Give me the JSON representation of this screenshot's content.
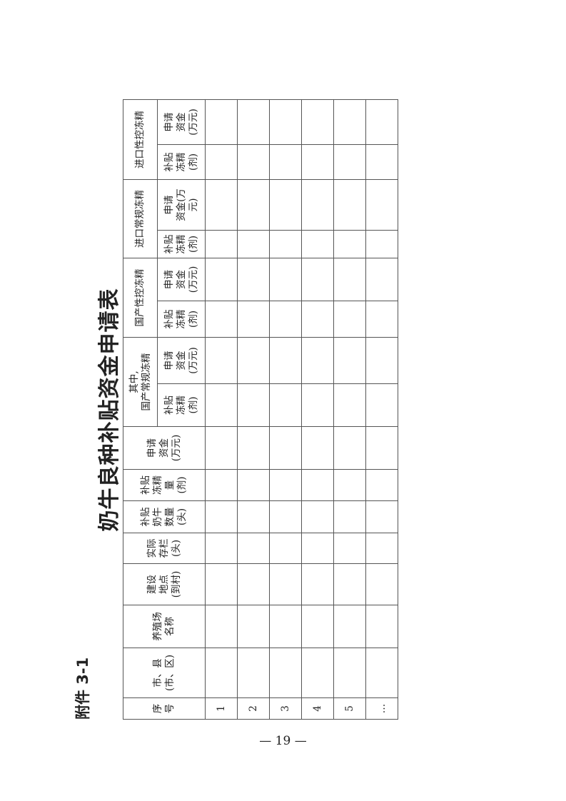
{
  "attachment_label": "附件 3-1",
  "title": "奶牛良种补贴资金申请表",
  "page_number": "— 19 —",
  "table": {
    "headers": {
      "seq": "序\n号",
      "region": "市、县\n(市、区)",
      "farm": "养殖场\n名称",
      "site": "建设\n地点\n(到村)",
      "stock": "实际\n存栏\n(头)",
      "cows": "补贴\n奶牛\n数量\n(头)",
      "semen": "补贴\n冻精\n量\n(剂)",
      "funds": "申请\n资金\n(万元)",
      "groups": [
        {
          "label": "其中,\n国产常规冻精",
          "sub": [
            "补贴\n冻精\n(剂)",
            "申请\n资金\n(万元)"
          ]
        },
        {
          "label": "国产性控冻精",
          "sub": [
            "补贴\n冻精\n(剂)",
            "申请\n资金\n(万元)"
          ]
        },
        {
          "label": "进口常规冻精",
          "sub": [
            "补贴\n冻精\n(剂)",
            "申请\n资金(万\n元)"
          ]
        },
        {
          "label": "进口性控冻精",
          "sub": [
            "补贴\n冻精\n(剂)",
            "申请\n资金\n(万元)"
          ]
        }
      ]
    },
    "rows": [
      "1",
      "2",
      "3",
      "4",
      "5",
      "…"
    ]
  }
}
